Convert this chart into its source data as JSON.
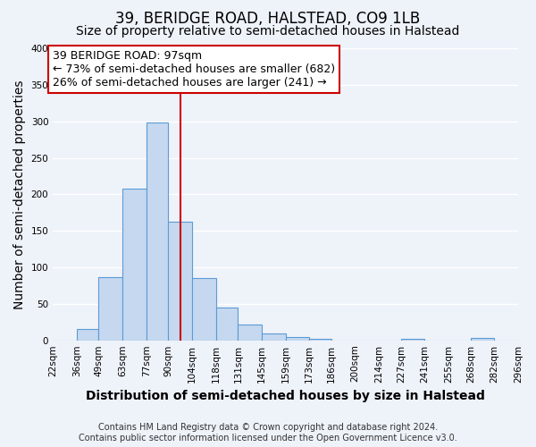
{
  "title": "39, BERIDGE ROAD, HALSTEAD, CO9 1LB",
  "subtitle": "Size of property relative to semi-detached houses in Halstead",
  "xlabel": "Distribution of semi-detached houses by size in Halstead",
  "ylabel": "Number of semi-detached properties",
  "bin_edges": [
    22,
    36,
    49,
    63,
    77,
    90,
    104,
    118,
    131,
    145,
    159,
    173,
    186,
    200,
    214,
    227,
    241,
    255,
    268,
    282,
    296
  ],
  "bar_heights": [
    0,
    15,
    87,
    208,
    298,
    163,
    85,
    45,
    22,
    9,
    5,
    2,
    0,
    0,
    0,
    2,
    0,
    0,
    3,
    0
  ],
  "bar_color": "#c5d8f0",
  "bar_edge_color": "#5b9bd5",
  "property_size": 97,
  "red_line_color": "#cc0000",
  "annotation_title": "39 BERIDGE ROAD: 97sqm",
  "annotation_line1": "← 73% of semi-detached houses are smaller (682)",
  "annotation_line2": "26% of semi-detached houses are larger (241) →",
  "annotation_box_color": "#ffffff",
  "annotation_box_edge": "#cc0000",
  "ylim": [
    0,
    400
  ],
  "yticks": [
    0,
    50,
    100,
    150,
    200,
    250,
    300,
    350,
    400
  ],
  "tick_labels": [
    "22sqm",
    "36sqm",
    "49sqm",
    "63sqm",
    "77sqm",
    "90sqm",
    "104sqm",
    "118sqm",
    "131sqm",
    "145sqm",
    "159sqm",
    "173sqm",
    "186sqm",
    "200sqm",
    "214sqm",
    "227sqm",
    "241sqm",
    "255sqm",
    "268sqm",
    "282sqm",
    "296sqm"
  ],
  "footer_line1": "Contains HM Land Registry data © Crown copyright and database right 2024.",
  "footer_line2": "Contains public sector information licensed under the Open Government Licence v3.0.",
  "background_color": "#eef2f9",
  "plot_bg_color": "#eef2f9",
  "grid_color": "#ffffff",
  "title_fontsize": 12,
  "subtitle_fontsize": 10,
  "axis_label_fontsize": 10,
  "tick_fontsize": 7.5,
  "footer_fontsize": 7,
  "annotation_fontsize": 9
}
